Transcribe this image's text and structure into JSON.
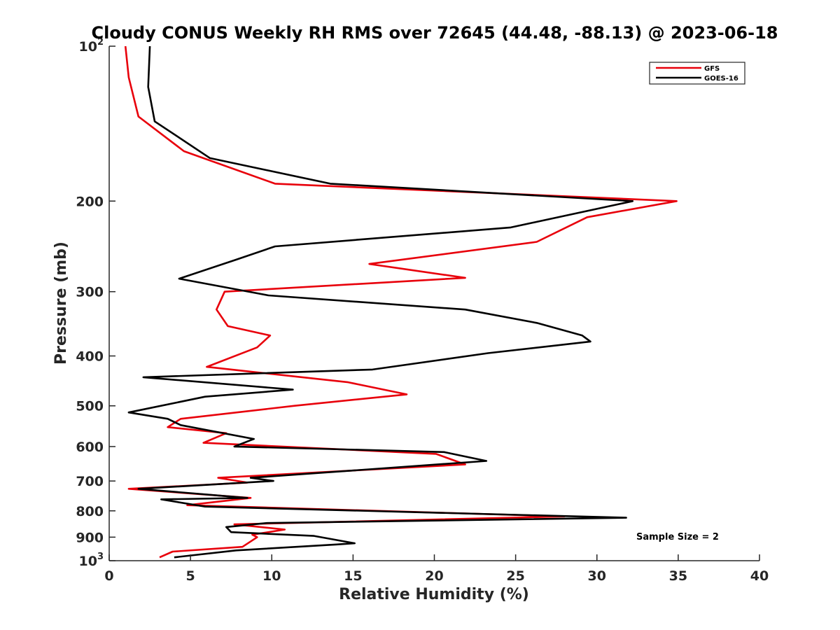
{
  "chart_data": {
    "type": "line",
    "title": "Cloudy CONUS Weekly RH RMS over 72645 (44.48, -88.13) @ 2023-06-18",
    "xlabel": "Relative Humidity (%)",
    "ylabel": "Pressure (mb)",
    "xlim": [
      0,
      40
    ],
    "ylim": [
      100,
      1000
    ],
    "y_scale": "log",
    "y_reversed": true,
    "grid": false,
    "legend_position": "top-right",
    "x_ticks": [
      "0",
      "5",
      "10",
      "15",
      "20",
      "25",
      "30",
      "35",
      "40"
    ],
    "y_ticks": [
      {
        "value": 100,
        "base": "10",
        "exp": "2"
      },
      {
        "value": 200,
        "label": "200"
      },
      {
        "value": 300,
        "label": "300"
      },
      {
        "value": 400,
        "label": "400"
      },
      {
        "value": 500,
        "label": "500"
      },
      {
        "value": 600,
        "label": "600"
      },
      {
        "value": 700,
        "label": "700"
      },
      {
        "value": 800,
        "label": "800"
      },
      {
        "value": 900,
        "label": "900"
      },
      {
        "value": 1000,
        "base": "10",
        "exp": "3"
      }
    ],
    "series": [
      {
        "name": "GFS",
        "color": "#e8000b",
        "points": [
          [
            1.0,
            100
          ],
          [
            1.2,
            115
          ],
          [
            1.8,
            137
          ],
          [
            4.6,
            160
          ],
          [
            10.2,
            185
          ],
          [
            34.9,
            200
          ],
          [
            29.4,
            215
          ],
          [
            26.3,
            240
          ],
          [
            16.0,
            265
          ],
          [
            21.9,
            282
          ],
          [
            7.1,
            300
          ],
          [
            6.6,
            325
          ],
          [
            7.3,
            350
          ],
          [
            9.9,
            365
          ],
          [
            9.1,
            385
          ],
          [
            6.0,
            420
          ],
          [
            14.7,
            450
          ],
          [
            18.3,
            475
          ],
          [
            11.4,
            500
          ],
          [
            4.4,
            530
          ],
          [
            3.6,
            550
          ],
          [
            7.2,
            565
          ],
          [
            5.8,
            590
          ],
          [
            20.1,
            620
          ],
          [
            21.9,
            650
          ],
          [
            6.7,
            690
          ],
          [
            8.5,
            705
          ],
          [
            1.2,
            725
          ],
          [
            8.7,
            755
          ],
          [
            4.8,
            780
          ],
          [
            28.0,
            820
          ],
          [
            7.7,
            850
          ],
          [
            10.8,
            870
          ],
          [
            8.8,
            890
          ],
          [
            9.1,
            900
          ],
          [
            8.2,
            940
          ],
          [
            3.9,
            960
          ],
          [
            3.1,
            985
          ]
        ]
      },
      {
        "name": "GOES-16",
        "color": "#000000",
        "points": [
          [
            2.5,
            100
          ],
          [
            2.4,
            120
          ],
          [
            2.8,
            140
          ],
          [
            6.2,
            165
          ],
          [
            13.6,
            185
          ],
          [
            32.2,
            200
          ],
          [
            24.7,
            225
          ],
          [
            10.2,
            245
          ],
          [
            7.8,
            260
          ],
          [
            4.3,
            283
          ],
          [
            9.8,
            305
          ],
          [
            21.9,
            325
          ],
          [
            26.3,
            345
          ],
          [
            29.1,
            365
          ],
          [
            29.6,
            375
          ],
          [
            23.3,
            395
          ],
          [
            16.2,
            425
          ],
          [
            2.1,
            440
          ],
          [
            11.3,
            465
          ],
          [
            5.9,
            480
          ],
          [
            1.2,
            515
          ],
          [
            3.6,
            530
          ],
          [
            4.4,
            545
          ],
          [
            8.9,
            580
          ],
          [
            7.7,
            600
          ],
          [
            20.6,
            615
          ],
          [
            23.2,
            640
          ],
          [
            8.7,
            690
          ],
          [
            10.1,
            700
          ],
          [
            1.8,
            725
          ],
          [
            8.5,
            755
          ],
          [
            3.2,
            760
          ],
          [
            5.9,
            785
          ],
          [
            31.8,
            825
          ],
          [
            9.7,
            845
          ],
          [
            7.2,
            860
          ],
          [
            7.5,
            880
          ],
          [
            12.6,
            895
          ],
          [
            15.1,
            925
          ],
          [
            14.0,
            930
          ],
          [
            7.8,
            955
          ],
          [
            4.0,
            985
          ]
        ]
      }
    ],
    "annotations": [
      "Sample Size = 2"
    ]
  }
}
